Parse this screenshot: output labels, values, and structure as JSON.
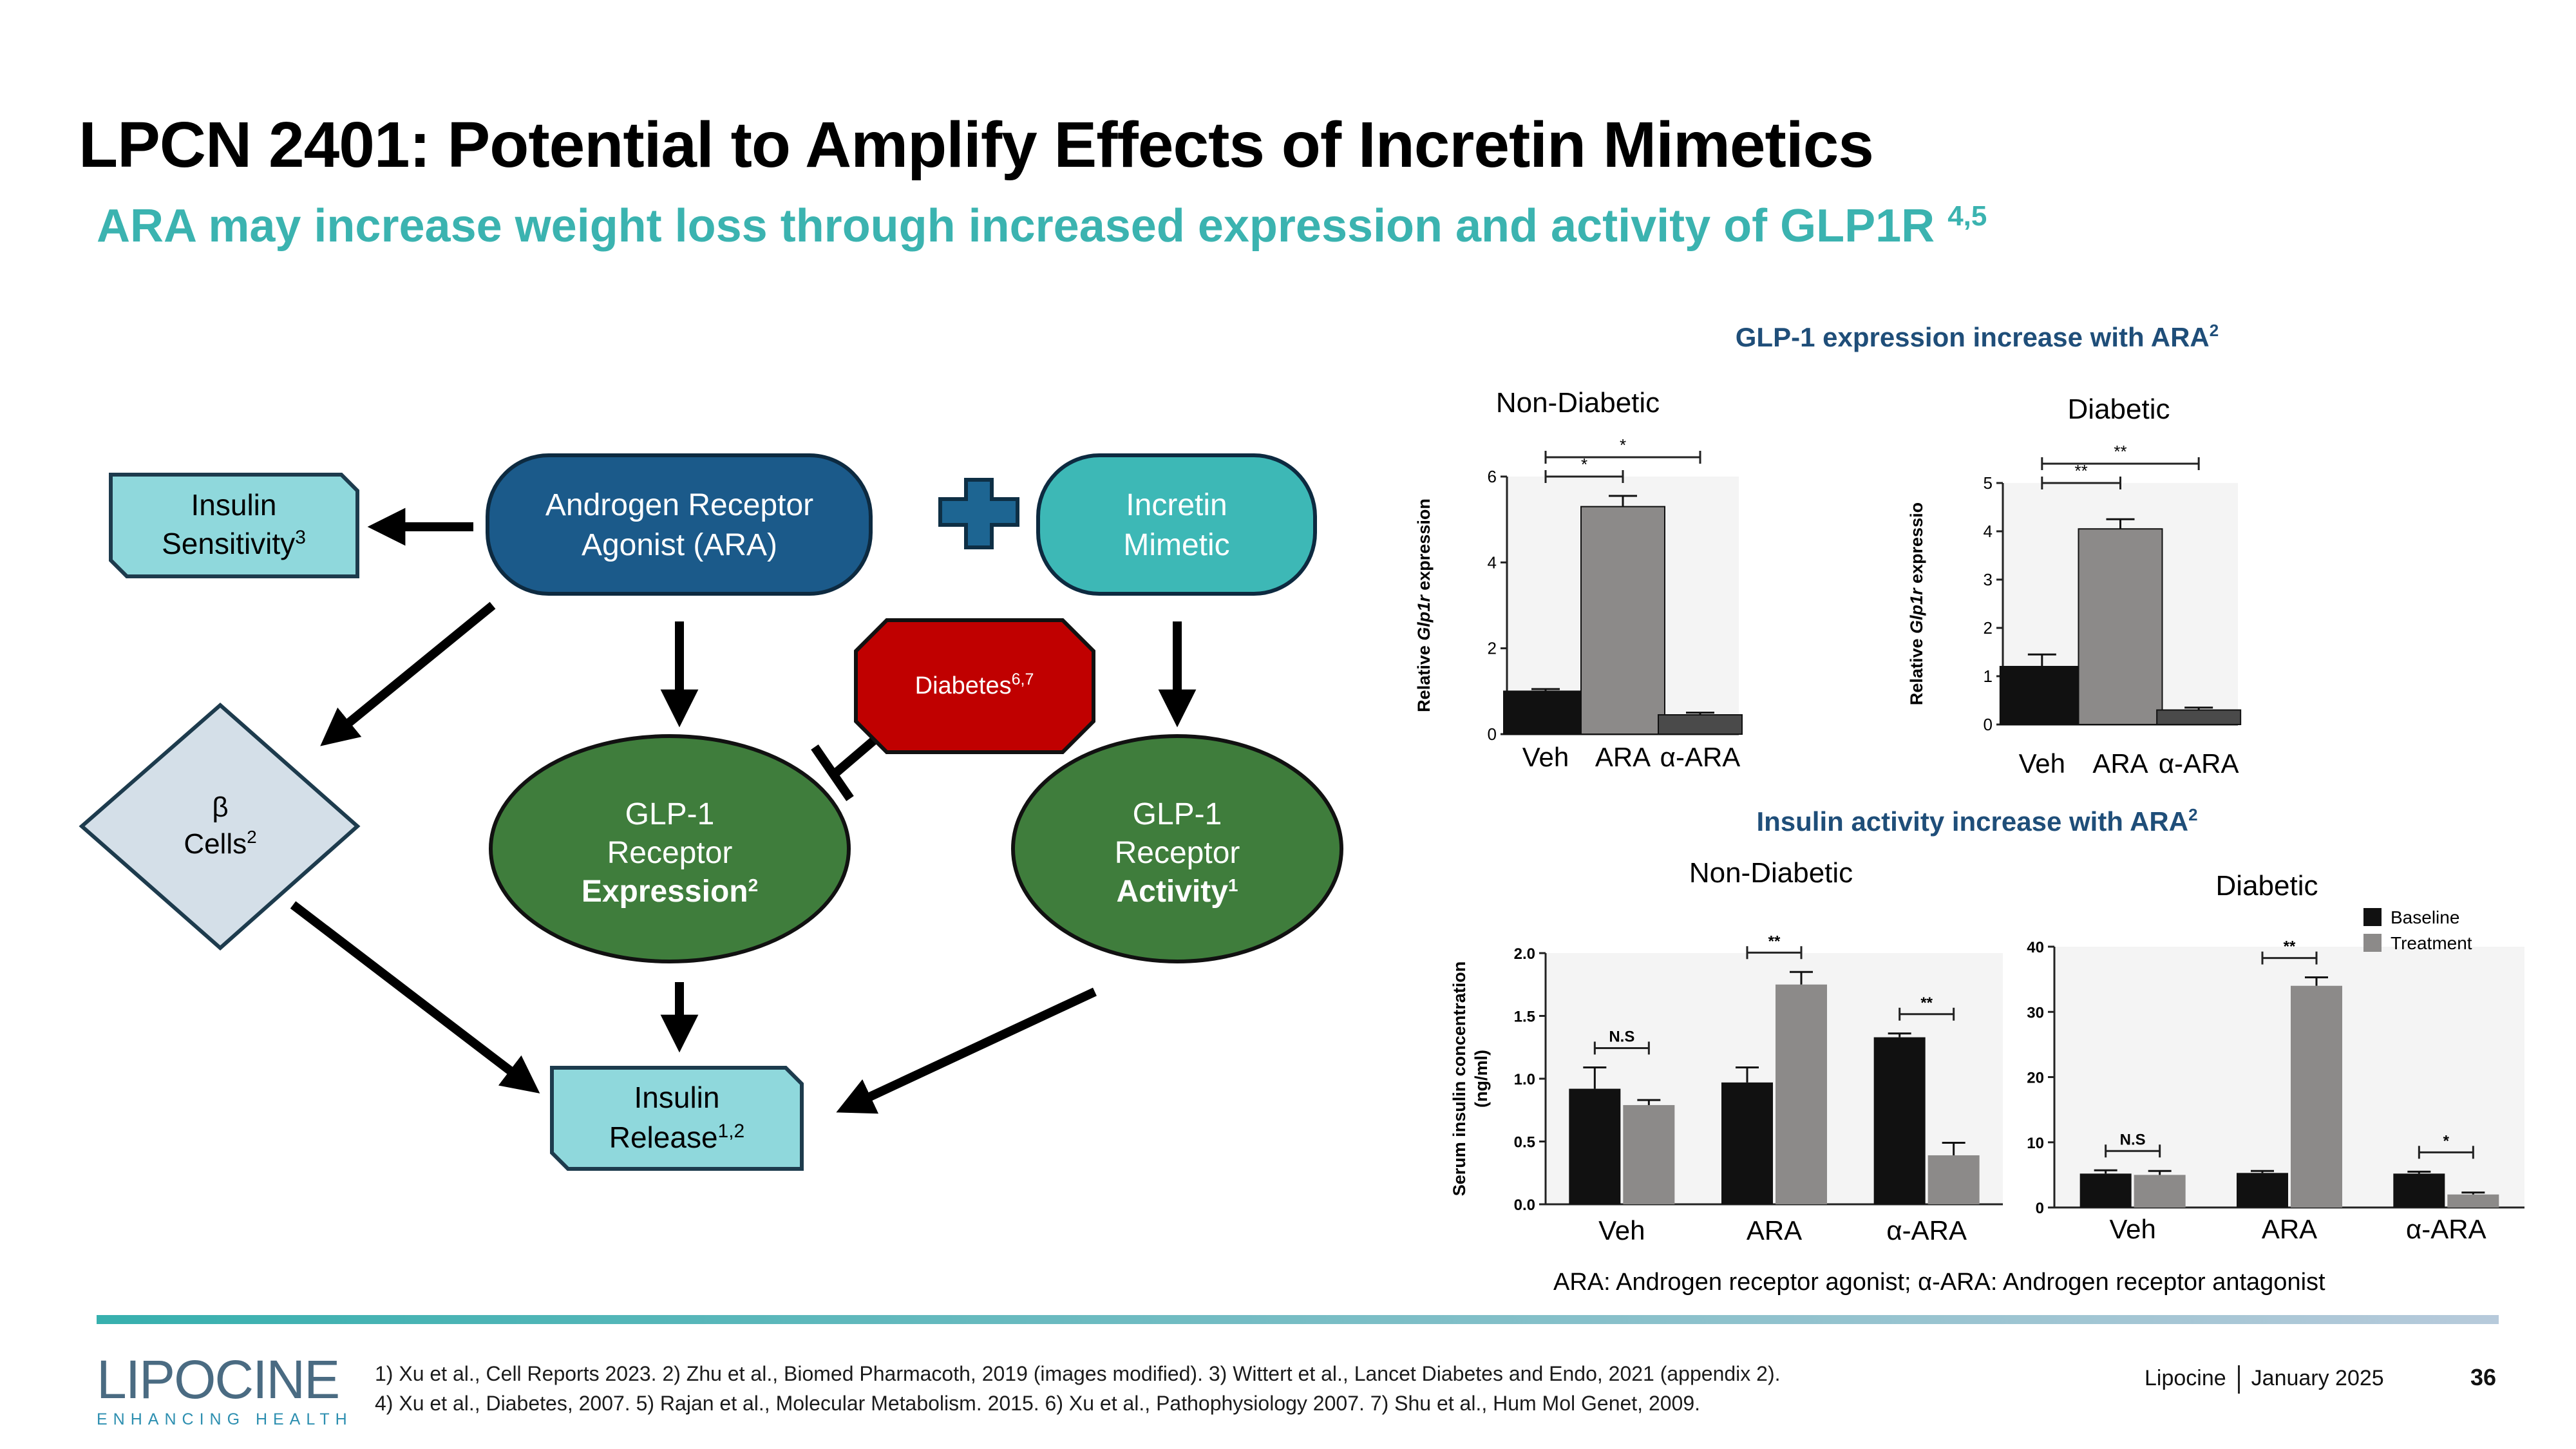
{
  "title": "LPCN 2401: Potential to Amplify Effects of Incretin Mimetics",
  "subtitle": "ARA may increase weight loss through increased expression and activity of GLP1R",
  "subtitle_refs": "4,5",
  "diagram": {
    "insulin_sensitivity": {
      "line1": "Insulin",
      "line2": "Sensitivity",
      "sup": "3"
    },
    "ara": {
      "line1": "Androgen Receptor",
      "line2": "Agonist (ARA)"
    },
    "incretin": {
      "line1": "Incretin",
      "line2": "Mimetic"
    },
    "diabetes": {
      "label": "Diabetes",
      "sup": "6,7"
    },
    "beta_cells": {
      "line1": "β",
      "line2": "Cells",
      "sup": "2"
    },
    "glp1_expression": {
      "line1": "GLP-1",
      "line2": "Receptor",
      "line3": "Expression",
      "sup": "2"
    },
    "glp1_activity": {
      "line1": "GLP-1",
      "line2": "Receptor",
      "line3": "Activity",
      "sup": "1"
    },
    "insulin_release": {
      "line1": "Insulin",
      "line2": "Release",
      "sup": "1,2"
    }
  },
  "sections": {
    "expression_title": "GLP-1 expression increase with ARA",
    "expression_sup": "2",
    "insulin_title": "Insulin activity increase with ARA",
    "insulin_sup": "2"
  },
  "colors": {
    "dark_blue": "#1b5a8a",
    "teal": "#3db8b6",
    "green": "#3f7d3c",
    "red": "#c00000",
    "light_teal": "#8fd8dc",
    "diamond": "#d4dfe8",
    "chart_title": "#1f4e79"
  },
  "chart_data": [
    {
      "type": "bar",
      "title": "Non-Diabetic",
      "group": "GLP-1 expression",
      "ylabel_prefix": "Relative ",
      "ylabel_italic": "Glp1r",
      "ylabel_suffix": " expression",
      "categories": [
        "Veh",
        "ARA",
        "α-ARA"
      ],
      "values": [
        1.0,
        5.3,
        0.45
      ],
      "errors": [
        0.05,
        0.25,
        0.05
      ],
      "ylim": [
        0,
        6
      ],
      "yticks": [
        "0",
        "2",
        "4",
        "6"
      ],
      "significance": [
        "*",
        "*"
      ]
    },
    {
      "type": "bar",
      "title": "Diabetic",
      "group": "GLP-1 expression",
      "ylabel_prefix": "Relative ",
      "ylabel_italic": "Glp1r",
      "ylabel_suffix": " expressio",
      "categories": [
        "Veh",
        "ARA",
        "α-ARA"
      ],
      "values": [
        1.2,
        4.05,
        0.3
      ],
      "errors": [
        0.25,
        0.2,
        0.05
      ],
      "ylim": [
        0,
        5
      ],
      "yticks": [
        "0",
        "1",
        "2",
        "3",
        "4",
        "5"
      ],
      "significance": [
        "**",
        "**"
      ]
    },
    {
      "type": "bar",
      "title": "Non-Diabetic",
      "group": "Insulin activity",
      "ylabel_line1": "Serum insulin concentration",
      "ylabel_line2": "(ng/ml)",
      "categories": [
        "Veh",
        "ARA",
        "α-ARA"
      ],
      "series": [
        {
          "name": "Baseline",
          "values": [
            0.92,
            0.97,
            1.33
          ],
          "errors": [
            0.17,
            0.12,
            0.03
          ]
        },
        {
          "name": "Treatment",
          "values": [
            0.79,
            1.75,
            0.39
          ],
          "errors": [
            0.04,
            0.1,
            0.1
          ]
        }
      ],
      "ylim": [
        0,
        2.0
      ],
      "yticks": [
        "0.0",
        "0.5",
        "1.0",
        "1.5",
        "2.0"
      ],
      "significance": [
        "N.S",
        "**",
        "**"
      ]
    },
    {
      "type": "bar",
      "title": "Diabetic",
      "group": "Insulin activity",
      "categories": [
        "Veh",
        "ARA",
        "α-ARA"
      ],
      "series": [
        {
          "name": "Baseline",
          "values": [
            5.2,
            5.3,
            5.2
          ],
          "errors": [
            0.5,
            0.3,
            0.3
          ]
        },
        {
          "name": "Treatment",
          "values": [
            5.0,
            34.0,
            2.0
          ],
          "errors": [
            0.6,
            1.3,
            0.3
          ]
        }
      ],
      "ylim": [
        0,
        40
      ],
      "yticks": [
        "0",
        "10",
        "20",
        "30",
        "40"
      ],
      "significance": [
        "N.S",
        "**",
        "*"
      ],
      "legend": [
        "Baseline",
        "Treatment"
      ]
    }
  ],
  "note": "ARA: Androgen receptor agonist;  α-ARA: Androgen receptor antagonist",
  "footer": {
    "logo_main": "LIPOCINE",
    "logo_tag": "ENHANCING HEALTH",
    "refs_line1": "1) Xu et al., Cell Reports 2023. 2) Zhu et al., Biomed Pharmacoth, 2019 (images modified). 3) Wittert et al., Lancet Diabetes and Endo, 2021 (appendix 2).",
    "refs_line2": "4) Xu et al., Diabetes, 2007. 5) Rajan et al., Molecular Metabolism. 2015. 6) Xu et al., Pathophysiology 2007. 7) Shu et al., Hum Mol Genet, 2009.",
    "company": "Lipocine",
    "date": "January 2025",
    "page": "36"
  }
}
